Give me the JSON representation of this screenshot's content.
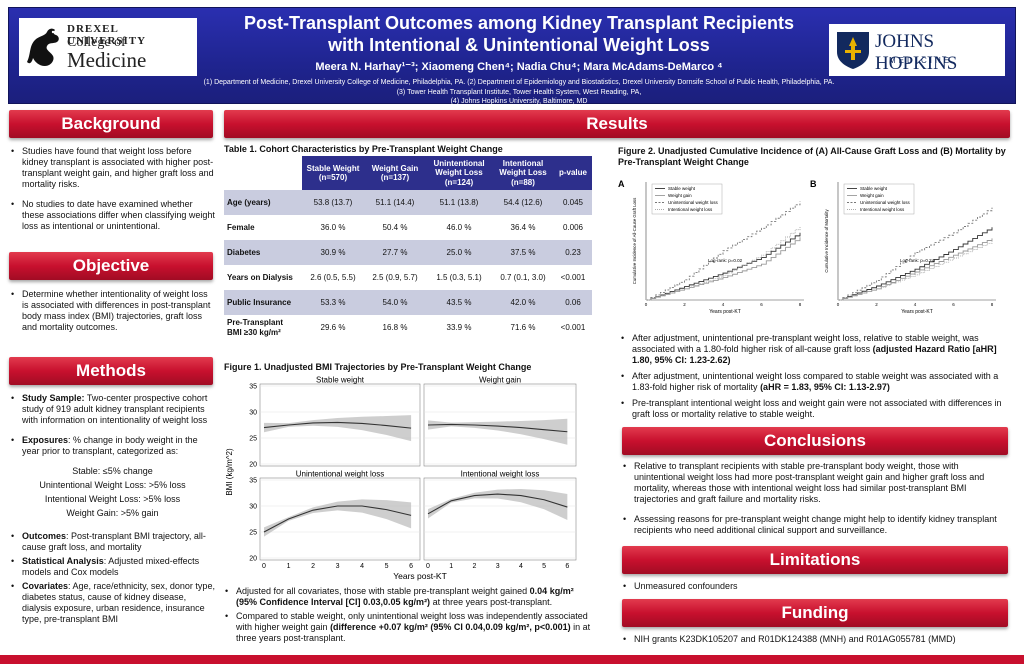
{
  "header": {
    "title_line1": "Post-Transplant Outcomes among Kidney Transplant Recipients",
    "title_line2": "with Intentional & Unintentional Weight Loss",
    "authors": "Meera N. Harhay¹⁻³; Xiaomeng Chen⁴; Nadia Chu⁴; Mara McAdams-DeMarco ⁴",
    "affil_line1": "(1)  Department of Medicine, Drexel University College of Medicine, Philadelphia, PA. (2) Department of Epidemiology and Biostatistics, Drexel University Dornsife School of Public Health, Philadelphia, PA.",
    "affil_line2": "(3) Tower Health Transplant Institute, Tower Health System, West Reading, PA,",
    "affil_line3": "(4) Johns Hopkins University, Baltimore, MD",
    "logo_left_univ": "DREXEL UNIVERSITY",
    "logo_left_college": "College of",
    "logo_left_medicine": "Medicine",
    "logo_right_name": "JOHNS HOPKINS",
    "logo_right_sub": "MEDICINE"
  },
  "sections": {
    "background": "Background",
    "objective": "Objective",
    "methods": "Methods",
    "results": "Results",
    "conclusions": "Conclusions",
    "limitations": "Limitations",
    "funding": "Funding"
  },
  "background": {
    "b1": "Studies have found that weight loss before kidney transplant is associated with higher post-transplant weight gain, and higher graft loss and mortality risks.",
    "b2": "No studies to date have examined whether these associations differ when classifying weight loss as intentional or unintentional."
  },
  "objective": {
    "o1": "Determine whether intentionality of weight loss is associated with differences in post-transplant body mass index (BMI) trajectories, graft loss and mortality outcomes."
  },
  "methods": {
    "sample_label": "Study Sample:",
    "sample_text": " Two-center prospective cohort study of 919 adult kidney transplant recipients with information on intentionality of weight loss",
    "exposures_label": "Exposures",
    "exposures_text": ": % change in body weight in the year prior to transplant, categorized as:",
    "cat1": "Stable: ≤5% change",
    "cat2": "Unintentional Weight Loss: >5% loss",
    "cat3": "Intentional Weight Loss: >5% loss",
    "cat4": "Weight Gain: >5% gain",
    "outcomes_label": "Outcomes",
    "outcomes_text": ": Post-transplant BMI trajectory, all-cause graft loss, and mortality",
    "analysis_label": "Statistical Analysis",
    "analysis_text": ": Adjusted mixed-effects models and Cox models",
    "cov_label": "Covariates",
    "cov_text": ": Age, race/ethnicity, sex, donor type, diabetes status, cause of kidney disease, dialysis exposure, urban residence, insurance type, pre-transplant BMI"
  },
  "table1": {
    "title": "Table 1. Cohort Characteristics by Pre-Transplant Weight Change",
    "headers": [
      "",
      "Stable Weight (n=570)",
      "Weight Gain (n=137)",
      "Unintentional Weight Loss (n=124)",
      "Intentional Weight Loss (n=88)",
      "p-value"
    ],
    "rows": [
      [
        "Age (years)",
        "53.8 (13.7)",
        "51.1 (14.4)",
        "51.1 (13.8)",
        "54.4 (12.6)",
        "0.045"
      ],
      [
        "Female",
        "36.0 %",
        "50.4 %",
        "46.0 %",
        "36.4 %",
        "0.006"
      ],
      [
        "Diabetes",
        "30.9 %",
        "27.7 %",
        "25.0 %",
        "37.5 %",
        "0.23"
      ],
      [
        "Years on Dialysis",
        "2.6 (0.5, 5.5)",
        "2.5 (0.9, 5.7)",
        "1.5 (0.3, 5.1)",
        "0.7 (0.1, 3.0)",
        "<0.001"
      ],
      [
        "Public Insurance",
        "53.3 %",
        "54.0 %",
        "43.5 %",
        "42.0 %",
        "0.06"
      ],
      [
        "Pre-Transplant BMI ≥30 kg/m²",
        "29.6 %",
        "16.8 %",
        "33.9 %",
        "71.6 %",
        "<0.001"
      ]
    ]
  },
  "fig1": {
    "title": "Figure 1. Unadjusted BMI Trajectories by Pre-Transplant Weight Change",
    "panel1": "Stable weight",
    "panel2": "Weight gain",
    "panel3": "Unintentional weight loss",
    "panel4": "Intentional weight loss",
    "ylabel": "BMI (kg/m^2)",
    "xlabel": "Years post-KT",
    "yticks_top": [
      "35",
      "30",
      "25",
      "20"
    ],
    "yticks_bottom": [
      "35",
      "30",
      "25",
      "20"
    ],
    "xticks": [
      "0",
      "1",
      "2",
      "3",
      "4",
      "5",
      "6"
    ]
  },
  "chart_data": [
    {
      "type": "line",
      "title": "Stable weight",
      "xlabel": "Years post-KT",
      "ylabel": "BMI (kg/m^2)",
      "x": [
        0,
        1,
        2,
        3,
        4,
        5,
        6
      ],
      "values": [
        27.0,
        27.5,
        27.9,
        28.0,
        27.8,
        27.4,
        26.9
      ],
      "ylim": [
        20,
        35
      ]
    },
    {
      "type": "line",
      "title": "Weight gain",
      "xlabel": "Years post-KT",
      "ylabel": "BMI (kg/m^2)",
      "x": [
        0,
        1,
        2,
        3,
        4,
        5,
        6
      ],
      "values": [
        27.5,
        27.6,
        27.5,
        27.3,
        27.0,
        26.6,
        26.2
      ],
      "ylim": [
        20,
        35
      ]
    },
    {
      "type": "line",
      "title": "Unintentional weight loss",
      "xlabel": "Years post-KT",
      "ylabel": "BMI (kg/m^2)",
      "x": [
        0,
        1,
        2,
        3,
        4,
        5,
        6
      ],
      "values": [
        25.0,
        27.5,
        29.2,
        30.0,
        30.0,
        29.3,
        28.2
      ],
      "ylim": [
        20,
        35
      ]
    },
    {
      "type": "line",
      "title": "Intentional weight loss",
      "xlabel": "Years post-KT",
      "ylabel": "BMI (kg/m^2)",
      "x": [
        0,
        1,
        2,
        3,
        4,
        5,
        6
      ],
      "values": [
        28.5,
        31.0,
        32.0,
        32.3,
        32.0,
        31.2,
        29.8
      ],
      "ylim": [
        20,
        35
      ]
    },
    {
      "type": "line",
      "title": "A",
      "xlabel": "Years post-KT",
      "ylabel": "Cumulative Incidence of All-Cause Graft Loss",
      "x": [
        0,
        2,
        4,
        6,
        8
      ],
      "series": [
        {
          "name": "Stable weight",
          "values": [
            0.0,
            0.06,
            0.12,
            0.19,
            0.3
          ]
        },
        {
          "name": "Weight gain",
          "values": [
            0.0,
            0.05,
            0.1,
            0.16,
            0.28
          ]
        },
        {
          "name": "Unintentional weight loss",
          "values": [
            0.0,
            0.09,
            0.22,
            0.32,
            0.44
          ]
        },
        {
          "name": "Intentional weight loss",
          "values": [
            0.0,
            0.05,
            0.11,
            0.2,
            0.33
          ]
        }
      ],
      "annotation": "Log-rank: p=0.02",
      "ylim": [
        0,
        0.5
      ]
    },
    {
      "type": "line",
      "title": "B",
      "xlabel": "Years post-KT",
      "ylabel": "Cumulative Incidence of Mortality",
      "x": [
        0,
        2,
        4,
        6,
        8
      ],
      "series": [
        {
          "name": "Stable weight",
          "values": [
            0.0,
            0.05,
            0.11,
            0.18,
            0.26
          ]
        },
        {
          "name": "Weight gain",
          "values": [
            0.0,
            0.04,
            0.1,
            0.16,
            0.22
          ]
        },
        {
          "name": "Unintentional weight loss",
          "values": [
            0.0,
            0.07,
            0.17,
            0.24,
            0.33
          ]
        },
        {
          "name": "Intentional weight loss",
          "values": [
            0.0,
            0.04,
            0.09,
            0.15,
            0.21
          ]
        }
      ],
      "annotation": "Log-rank: p=0.24",
      "ylim": [
        0,
        0.4
      ]
    }
  ],
  "fig1_notes": {
    "n1a": "Adjusted for all covariates, those with stable pre-transplant weight gained ",
    "n1b": "0.04 kg/m² (95% Confidence Interval [CI] 0.03,0.05 kg/m²)",
    "n1c": " at three years post-transplant.",
    "n2a": "Compared to stable weight, only unintentional weight loss was independently associated with higher weight gain ",
    "n2b": "(difference +0.07 kg/m² (95% CI 0.04,0.09 kg/m², p<0.001)",
    "n2c": " in at three years post-transplant."
  },
  "fig2": {
    "title": "Figure 2. Unadjusted Cumulative Incidence of (A) All-Cause Graft Loss and (B) Mortality by Pre-Transplant Weight Change",
    "panel_a": "A",
    "panel_b": "B",
    "legend": [
      "Stable weight",
      "Weight gain",
      "Unintentional weight loss",
      "Intentional weight loss"
    ],
    "logrank_a": "Log-rank: p=0.02",
    "logrank_b": "Log-rank: p=0.24",
    "xlabel": "Years post-KT",
    "ylabel_a": "Cumulative Incidence of All-Cause Graft Loss",
    "ylabel_b": "Cumulative Incidence of Mortality",
    "xticks": [
      "0",
      "2",
      "4",
      "6",
      "8"
    ]
  },
  "results_text": {
    "r1a": "After adjustment, unintentional pre-transplant weight loss, relative to stable weight, was associated with a 1.80-fold higher risk of all-cause graft loss ",
    "r1b": "(adjusted Hazard Ratio [aHR] 1.80, 95% CI: 1.23-2.62)",
    "r2a": "After adjustment, unintentional weight loss compared to stable weight was associated with a 1.83-fold higher risk of mortality ",
    "r2b": "(aHR = 1.83, 95% CI: 1.13-2.97)",
    "r3": "Pre-transplant intentional weight loss and weight gain were not associated with differences in graft loss or mortality relative to stable weight."
  },
  "conclusions": {
    "c1": "Relative to transplant recipients with stable pre-transplant body weight, those with unintentional weight loss had more post-transplant weight gain and higher graft loss and mortality, whereas those with intentional weight loss had similar post-transplant BMI trajectories and graft failure and mortality risks.",
    "c2": "Assessing reasons for pre-transplant weight change might help to identify kidney transplant recipients who need additional clinical support and surveillance."
  },
  "limitations": {
    "l1": "Unmeasured confounders"
  },
  "funding": {
    "f1": "NIH grants K23DK105207 and R01DK124388 (MNH) and R01AG055781 (MMD)"
  },
  "colors": {
    "header_blue": "#1f248f",
    "banner_red": "#c8102e",
    "table_header": "#2d2f8c",
    "table_stripe": "#c9ccdf"
  }
}
